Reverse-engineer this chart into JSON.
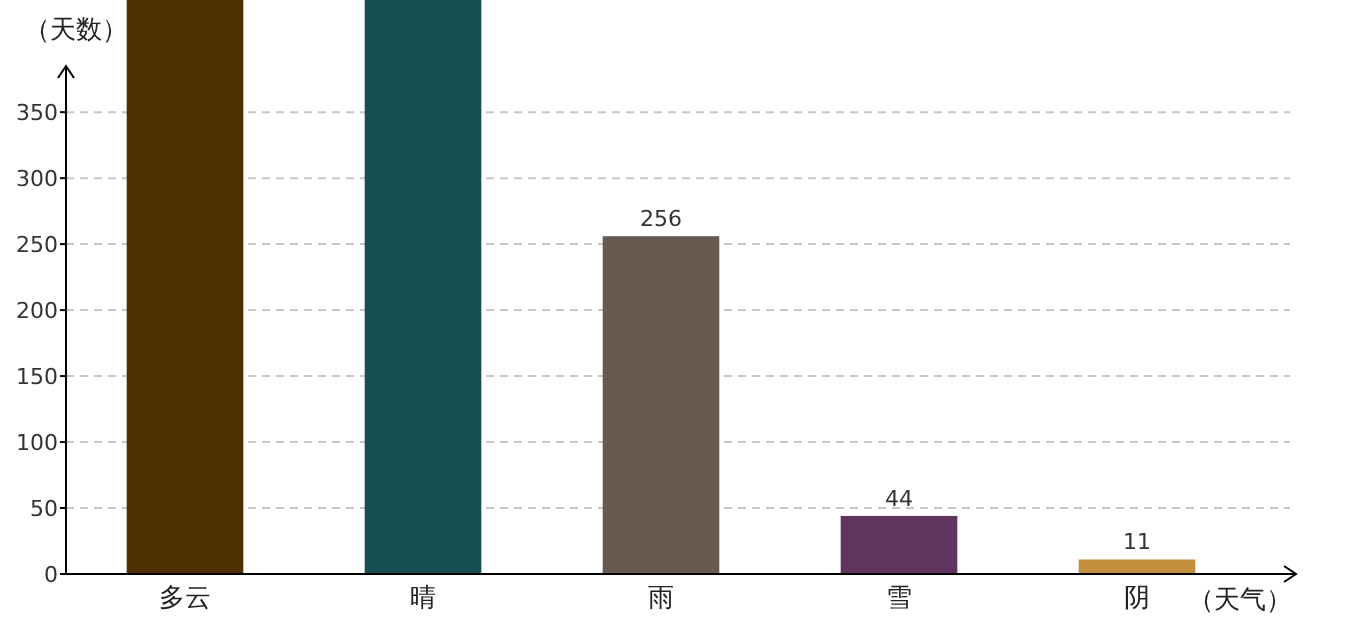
{
  "chart_data": {
    "type": "bar",
    "xlabel": "（天气）",
    "ylabel": "（天数）",
    "categories": [
      "多云",
      "晴",
      "雨",
      "雪",
      "阴"
    ],
    "values": [
      435,
      435,
      256,
      44,
      11
    ],
    "colors": [
      "#4f3000",
      "#164e52",
      "#675a50",
      "#61335f",
      "#c28f3e"
    ],
    "value_labels": [
      null,
      null,
      "256",
      "44",
      "11"
    ],
    "ylim": [
      0,
      435
    ],
    "yticks": [
      0,
      50,
      100,
      150,
      200,
      250,
      300,
      350
    ],
    "grid": "y"
  }
}
